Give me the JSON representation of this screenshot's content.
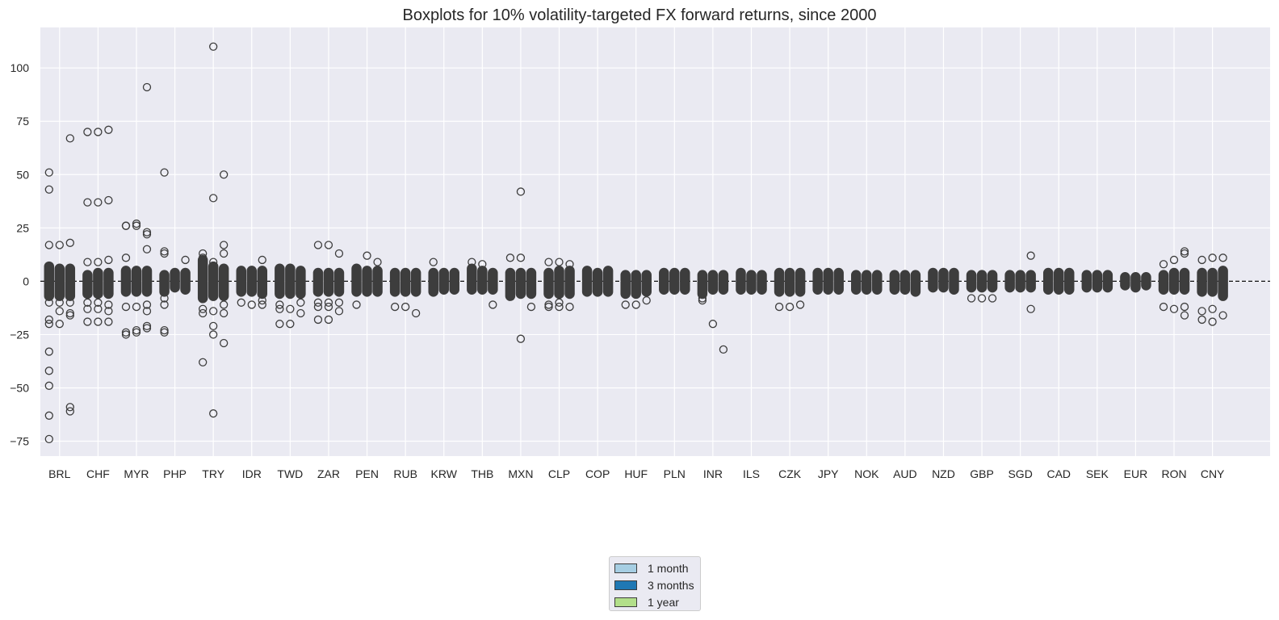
{
  "chart_data": {
    "type": "box",
    "title": "Boxplots for 10% volatility-targeted FX forward returns, since 2000",
    "xlabel": "",
    "ylabel": "",
    "ylim": [
      -82,
      119
    ],
    "yticks": [
      -75,
      -50,
      -25,
      0,
      25,
      50,
      75,
      100
    ],
    "ytick_labels": [
      "−75",
      "−50",
      "−25",
      "0",
      "25",
      "50",
      "75",
      "100"
    ],
    "grid": true,
    "reference_line": {
      "y": 0,
      "style": "dashed"
    },
    "categories": [
      "BRL",
      "CHF",
      "MYR",
      "PHP",
      "TRY",
      "IDR",
      "TWD",
      "ZAR",
      "PEN",
      "RUB",
      "KRW",
      "THB",
      "MXN",
      "CLP",
      "COP",
      "HUF",
      "PLN",
      "INR",
      "ILS",
      "CZK",
      "JPY",
      "NOK",
      "AUD",
      "NZD",
      "GBP",
      "SGD",
      "CAD",
      "SEK",
      "EUR",
      "RON",
      "CNY"
    ],
    "legend": {
      "placement": "bottom-center",
      "entries": [
        {
          "label": "1 month",
          "color": "#a6cee3"
        },
        {
          "label": "3 months",
          "color": "#1f78b4"
        },
        {
          "label": "1 year",
          "color": "#b2df8a"
        }
      ]
    },
    "box_color": "#3d3d3d",
    "series_names": [
      "1 month",
      "3 months",
      "1 year"
    ],
    "whiskers": [
      [
        [
          -9,
          9
        ],
        [
          -9,
          8
        ],
        [
          -9,
          8
        ]
      ],
      [
        [
          -8,
          5
        ],
        [
          -8,
          6
        ],
        [
          -8,
          6
        ]
      ],
      [
        [
          -7,
          7
        ],
        [
          -7,
          7
        ],
        [
          -7,
          7
        ]
      ],
      [
        [
          -7,
          5
        ],
        [
          -5,
          6
        ],
        [
          -6,
          6
        ]
      ],
      [
        [
          -10,
          12
        ],
        [
          -9,
          9
        ],
        [
          -9,
          8
        ]
      ],
      [
        [
          -7,
          7
        ],
        [
          -7,
          7
        ],
        [
          -8,
          7
        ]
      ],
      [
        [
          -8,
          8
        ],
        [
          -8,
          8
        ],
        [
          -8,
          7
        ]
      ],
      [
        [
          -7,
          6
        ],
        [
          -7,
          6
        ],
        [
          -7,
          6
        ]
      ],
      [
        [
          -7,
          8
        ],
        [
          -7,
          7
        ],
        [
          -7,
          7
        ]
      ],
      [
        [
          -7,
          6
        ],
        [
          -7,
          6
        ],
        [
          -7,
          6
        ]
      ],
      [
        [
          -7,
          6
        ],
        [
          -6,
          6
        ],
        [
          -6,
          6
        ]
      ],
      [
        [
          -6,
          8
        ],
        [
          -6,
          7
        ],
        [
          -6,
          6
        ]
      ],
      [
        [
          -9,
          6
        ],
        [
          -8,
          6
        ],
        [
          -8,
          6
        ]
      ],
      [
        [
          -8,
          6
        ],
        [
          -8,
          7
        ],
        [
          -8,
          7
        ]
      ],
      [
        [
          -7,
          7
        ],
        [
          -7,
          6
        ],
        [
          -7,
          7
        ]
      ],
      [
        [
          -8,
          5
        ],
        [
          -8,
          5
        ],
        [
          -7,
          5
        ]
      ],
      [
        [
          -6,
          6
        ],
        [
          -6,
          6
        ],
        [
          -6,
          6
        ]
      ],
      [
        [
          -8,
          5
        ],
        [
          -6,
          5
        ],
        [
          -6,
          5
        ]
      ],
      [
        [
          -6,
          6
        ],
        [
          -6,
          5
        ],
        [
          -6,
          5
        ]
      ],
      [
        [
          -7,
          6
        ],
        [
          -7,
          6
        ],
        [
          -7,
          6
        ]
      ],
      [
        [
          -6,
          6
        ],
        [
          -6,
          6
        ],
        [
          -6,
          6
        ]
      ],
      [
        [
          -6,
          5
        ],
        [
          -6,
          5
        ],
        [
          -6,
          5
        ]
      ],
      [
        [
          -6,
          5
        ],
        [
          -6,
          5
        ],
        [
          -7,
          5
        ]
      ],
      [
        [
          -5,
          6
        ],
        [
          -5,
          6
        ],
        [
          -6,
          6
        ]
      ],
      [
        [
          -5,
          5
        ],
        [
          -5,
          5
        ],
        [
          -5,
          5
        ]
      ],
      [
        [
          -5,
          5
        ],
        [
          -5,
          5
        ],
        [
          -5,
          5
        ]
      ],
      [
        [
          -6,
          6
        ],
        [
          -6,
          6
        ],
        [
          -6,
          6
        ]
      ],
      [
        [
          -5,
          5
        ],
        [
          -5,
          5
        ],
        [
          -5,
          5
        ]
      ],
      [
        [
          -4,
          4
        ],
        [
          -5,
          4
        ],
        [
          -4,
          4
        ]
      ],
      [
        [
          -6,
          5
        ],
        [
          -6,
          6
        ],
        [
          -6,
          6
        ]
      ],
      [
        [
          -7,
          6
        ],
        [
          -7,
          6
        ],
        [
          -9,
          7
        ]
      ]
    ],
    "outliers": [
      [
        [
          51,
          43,
          17,
          -18,
          -20,
          -33,
          -42,
          -49,
          -63,
          -74,
          -10
        ],
        [
          17,
          -14,
          -20,
          -10
        ],
        [
          67,
          18,
          -15,
          -16,
          -59,
          -61,
          -10
        ]
      ],
      [
        [
          37,
          70,
          9,
          -10,
          -13,
          -19
        ],
        [
          37,
          70,
          9,
          -10,
          -13,
          -19
        ],
        [
          38,
          71,
          10,
          -11,
          -14,
          -19
        ]
      ],
      [
        [
          26,
          26,
          11,
          -12,
          -24,
          -25
        ],
        [
          27,
          26,
          -12,
          -23,
          -24
        ],
        [
          91,
          23,
          22,
          15,
          -11,
          -14,
          -21,
          -22
        ]
      ],
      [
        [
          51,
          14,
          13,
          -8,
          -11,
          -23,
          -24
        ],
        [],
        [
          10
        ]
      ],
      [
        [
          13,
          11,
          -13,
          -15,
          -38
        ],
        [
          110,
          39,
          9,
          -14,
          -21,
          -25,
          -62
        ],
        [
          50,
          17,
          13,
          -11,
          -15,
          -29
        ]
      ],
      [
        [
          -10
        ],
        [
          -11
        ],
        [
          10,
          -9,
          -11
        ]
      ],
      [
        [
          -11,
          -13,
          -20
        ],
        [
          -13,
          -20
        ],
        [
          -10,
          -15
        ]
      ],
      [
        [
          17,
          -10,
          -12,
          -18
        ],
        [
          17,
          -10,
          -12,
          -18
        ],
        [
          13,
          -10,
          -14
        ]
      ],
      [
        [
          -11
        ],
        [
          12
        ],
        [
          9
        ]
      ],
      [
        [
          -12
        ],
        [
          -12
        ],
        [
          -15
        ]
      ],
      [
        [
          9
        ],
        [],
        []
      ],
      [
        [
          9
        ],
        [
          8
        ],
        [
          -11
        ]
      ],
      [
        [
          11
        ],
        [
          11,
          42,
          -27
        ],
        [
          -12
        ]
      ],
      [
        [
          9,
          -11,
          -12
        ],
        [
          9,
          -10,
          -12
        ],
        [
          8,
          -12
        ]
      ],
      [
        [],
        [],
        []
      ],
      [
        [
          -11
        ],
        [
          -11
        ],
        [
          -9
        ]
      ],
      [
        [],
        [],
        []
      ],
      [
        [
          -8,
          -9
        ],
        [
          -20
        ],
        [
          -32
        ]
      ],
      [
        [],
        [],
        []
      ],
      [
        [
          -12
        ],
        [
          -12
        ],
        [
          -11
        ]
      ],
      [
        [],
        [],
        []
      ],
      [
        [],
        [],
        []
      ],
      [
        [],
        [],
        []
      ],
      [
        [],
        [],
        []
      ],
      [
        [
          -8
        ],
        [
          -8
        ],
        [
          -8
        ]
      ],
      [
        [],
        [],
        [
          12,
          -13
        ]
      ],
      [
        [],
        [],
        []
      ],
      [
        [],
        [],
        []
      ],
      [
        [],
        [],
        []
      ],
      [
        [
          8,
          -12
        ],
        [
          10,
          -13
        ],
        [
          14,
          13,
          -12,
          -16
        ]
      ],
      [
        [
          10,
          -14,
          -18
        ],
        [
          11,
          -13,
          -19
        ],
        [
          11,
          -16
        ]
      ]
    ]
  }
}
